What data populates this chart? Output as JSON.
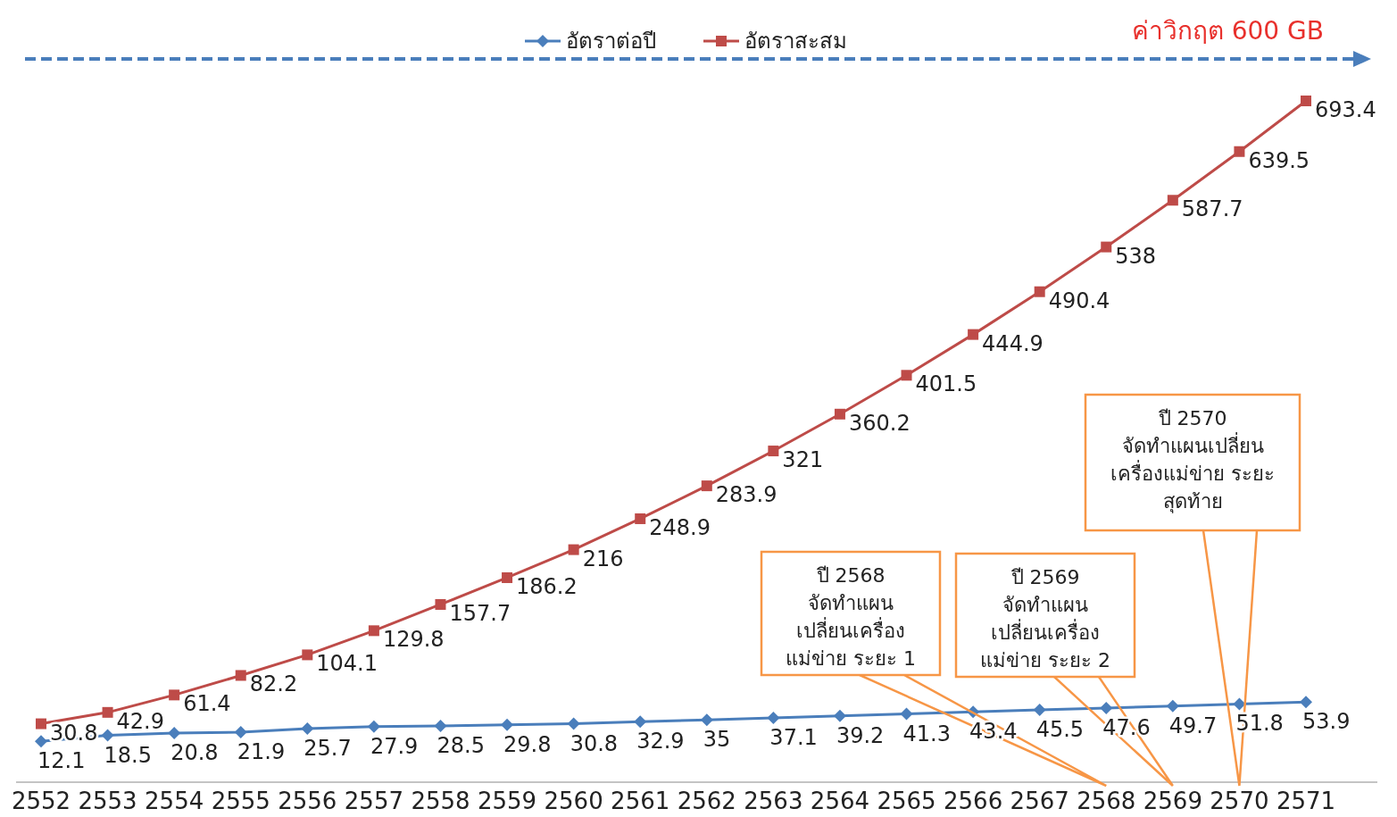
{
  "chart_data": {
    "type": "line",
    "categories": [
      "2552",
      "2553",
      "2554",
      "2555",
      "2556",
      "2557",
      "2558",
      "2559",
      "2560",
      "2561",
      "2562",
      "2563",
      "2564",
      "2565",
      "2566",
      "2567",
      "2568",
      "2569",
      "2570",
      "2571"
    ],
    "series": [
      {
        "name": "อัตราต่อปี",
        "color": "#4a7ebb",
        "marker": "diamond",
        "values": [
          12.1,
          18.5,
          20.8,
          21.9,
          25.7,
          27.9,
          28.5,
          29.8,
          30.8,
          32.9,
          35,
          37.1,
          39.2,
          41.3,
          43.4,
          45.5,
          47.6,
          49.7,
          51.8,
          53.9
        ]
      },
      {
        "name": "อัตราสะสม",
        "color": "#be4b48",
        "marker": "square",
        "values": [
          30.8,
          42.9,
          61.4,
          82.2,
          104.1,
          129.8,
          157.7,
          186.2,
          216,
          248.9,
          283.9,
          321,
          360.2,
          401.5,
          444.9,
          490.4,
          538,
          587.7,
          639.5,
          693.4
        ]
      }
    ],
    "data_labels": true,
    "legend": "top",
    "annotations": [
      "ค่าวิกฤต 600 GB",
      "ปี 2568\nจัดทำแผน\nเปลี่ยนเครื่อง\nแม่ข่าย ระยะ 1",
      "ปี 2569\nจัดทำแผน\nเปลี่ยนเครื่อง\nแม่ข่าย ระยะ 2",
      "ปี 2570\nจัดทำแผนเปลี่ยน\nเครื่องแม่ข่าย ระยะ\nสุดท้าย"
    ]
  }
}
